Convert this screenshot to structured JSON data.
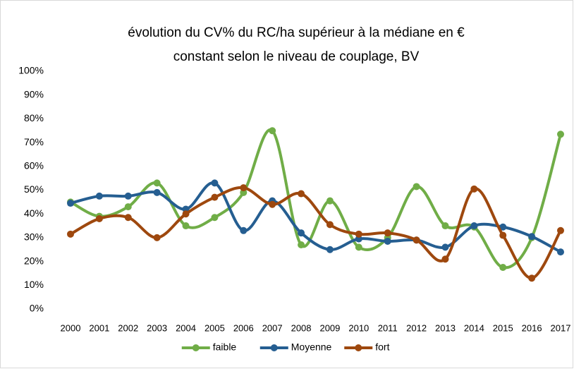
{
  "chart_data": {
    "type": "line",
    "title": [
      "évolution du CV% du RC/ha supérieur à la médiane en €",
      "constant selon le niveau de couplage, BV"
    ],
    "categories": [
      "2000",
      "2001",
      "2002",
      "2003",
      "2004",
      "2005",
      "2006",
      "2007",
      "2008",
      "2009",
      "2010",
      "2011",
      "2012",
      "2013",
      "2014",
      "2015",
      "2016",
      "2017"
    ],
    "series": [
      {
        "name": "faible",
        "color": "#70ad47",
        "values": [
          45,
          39,
          43,
          53,
          35,
          38.5,
          49,
          75,
          27,
          45.5,
          26,
          30,
          51.5,
          35,
          34.5,
          17.5,
          30,
          73.5
        ]
      },
      {
        "name": "Moyenne",
        "color": "#255e91",
        "values": [
          44.5,
          47.5,
          47.5,
          49,
          42,
          53,
          33,
          45.5,
          32,
          25,
          29.5,
          28.5,
          29,
          26,
          35,
          34.5,
          30.5,
          24
        ]
      },
      {
        "name": "fort",
        "color": "#9e480e",
        "values": [
          31.5,
          38,
          38.5,
          30,
          40,
          47,
          51,
          44,
          48.5,
          35.5,
          31.5,
          32,
          29,
          21,
          50.5,
          31,
          13,
          33
        ]
      }
    ],
    "ylim": [
      0,
      100
    ],
    "yticks": [
      {
        "value": 0,
        "label": "0%"
      },
      {
        "value": 10,
        "label": "10%"
      },
      {
        "value": 20,
        "label": "20%"
      },
      {
        "value": 30,
        "label": "30%"
      },
      {
        "value": 40,
        "label": "40%"
      },
      {
        "value": 50,
        "label": "50%"
      },
      {
        "value": 60,
        "label": "60%"
      },
      {
        "value": 70,
        "label": "70%"
      },
      {
        "value": 80,
        "label": "80%"
      },
      {
        "value": 90,
        "label": "90%"
      },
      {
        "value": 100,
        "label": "100%"
      }
    ],
    "smooth": true,
    "legend": "bottom"
  }
}
